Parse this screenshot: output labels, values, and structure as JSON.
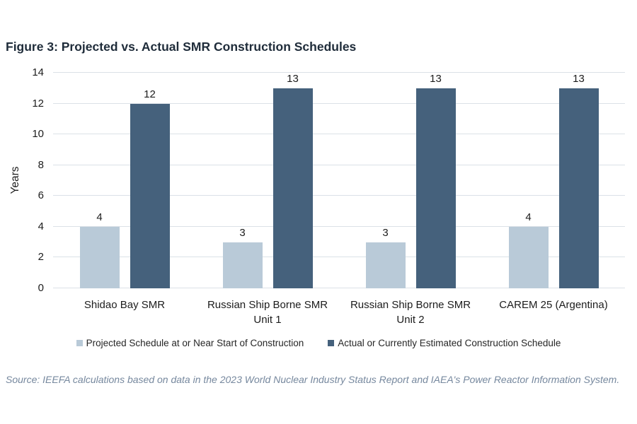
{
  "figure": {
    "title": "Figure 3: Projected vs. Actual SMR Construction Schedules",
    "source": "Source: IEEFA calculations based on data in the 2023 World Nuclear Industry Status Report and IAEA's Power Reactor Information System."
  },
  "chart_data": {
    "type": "bar",
    "title": "Figure 3: Projected vs. Actual SMR Construction Schedules",
    "categories": [
      "Shidao Bay SMR",
      "Russian Ship Borne SMR\nUnit 1",
      "Russian Ship Borne SMR\nUnit 2",
      "CAREM 25 (Argentina)"
    ],
    "series": [
      {
        "name": "Projected Schedule at or Near Start of Construction",
        "values": [
          4,
          3,
          3,
          4
        ],
        "color": "#b9cad8"
      },
      {
        "name": "Actual or Currently Estimated Construction Schedule",
        "values": [
          12,
          13,
          13,
          13
        ],
        "color": "#45617c"
      }
    ],
    "xlabel": "",
    "ylabel": "Years",
    "ylim": [
      0,
      14
    ],
    "yticks": [
      0,
      2,
      4,
      6,
      8,
      10,
      12,
      14
    ],
    "grid": true,
    "value_labels": true,
    "legend_position": "bottom",
    "colors": {
      "projected": "#b9cad8",
      "actual": "#45617c",
      "gridline": "#dbe1e7",
      "title_text": "#1f2c3a",
      "source_text": "#76889e"
    }
  }
}
